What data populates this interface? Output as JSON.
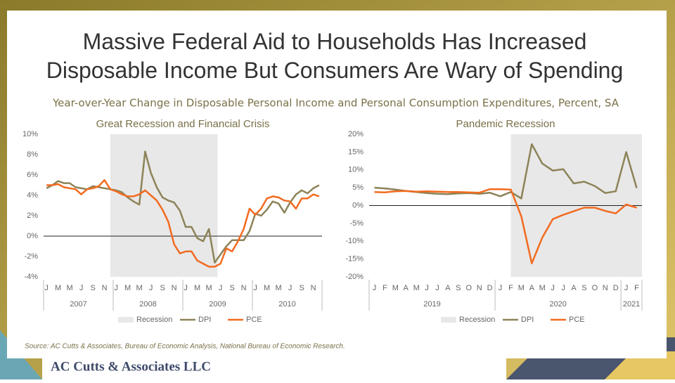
{
  "title": "Massive Federal Aid to Households Has Increased Disposable Income But Consumers Are Wary of Spending",
  "subtitle": "Year-over-Year Change in Disposable Personal Income and Personal Consumption Expenditures, Percent, SA",
  "source": "Source: AC Cutts & Associates, Bureau of Economic Analysis, National Bureau of Economic Research.",
  "logo": "AC Cutts & Associates LLC",
  "chart_data": [
    {
      "type": "line",
      "title": "Great Recession and Financial Crisis",
      "categories": [
        "J",
        null,
        "M",
        null,
        "M",
        null,
        "J",
        null,
        "S",
        null,
        "N",
        null,
        "J",
        null,
        "M",
        null,
        "M",
        null,
        "J",
        null,
        "S",
        null,
        "N",
        null,
        "J",
        null,
        "M",
        null,
        "M",
        null,
        "J",
        null,
        "S",
        null,
        "N",
        null,
        "J",
        null,
        "M",
        null,
        "M",
        null,
        "J",
        null,
        "S",
        null,
        "N",
        null
      ],
      "groups": [
        {
          "label": "2007",
          "size": 12
        },
        {
          "label": "2008",
          "size": 12
        },
        {
          "label": "2009",
          "size": 12
        },
        {
          "label": "2010",
          "size": 12
        }
      ],
      "recession": {
        "name": "Recession",
        "color": "#e8e8e8",
        "span": [
          11,
          29
        ]
      },
      "series": [
        {
          "name": "DPI",
          "color": "#8c8358",
          "values": [
            4.7,
            5.0,
            5.4,
            5.2,
            5.2,
            4.8,
            4.7,
            4.6,
            4.9,
            4.8,
            4.7,
            4.6,
            4.5,
            4.3,
            3.8,
            3.4,
            3.1,
            8.3,
            6.2,
            4.8,
            3.8,
            3.5,
            3.3,
            2.5,
            0.9,
            0.9,
            -0.2,
            -0.5,
            0.7,
            -2.6,
            -1.8,
            -1.0,
            -0.4,
            -0.4,
            -0.4,
            0.5,
            2.2,
            2.0,
            2.6,
            3.4,
            3.2,
            2.3,
            3.3,
            4.1,
            4.5,
            4.2,
            4.7,
            5.0
          ]
        },
        {
          "name": "PCE",
          "color": "#f26b21",
          "values": [
            5.0,
            5.0,
            5.1,
            4.8,
            4.7,
            4.6,
            4.1,
            4.6,
            4.7,
            4.9,
            5.5,
            4.6,
            4.4,
            4.1,
            3.9,
            3.9,
            4.1,
            4.5,
            4.0,
            3.5,
            2.6,
            1.4,
            -0.8,
            -1.7,
            -1.5,
            -1.5,
            -2.4,
            -2.7,
            -3.0,
            -3.0,
            -2.7,
            -1.2,
            -1.5,
            -0.5,
            0.7,
            2.7,
            2.1,
            2.7,
            3.7,
            3.9,
            3.8,
            3.5,
            3.4,
            2.7,
            3.7,
            3.7,
            4.1,
            3.9
          ]
        }
      ],
      "ylim": [
        -4,
        10
      ],
      "yticks": [
        {
          "value": -4,
          "label": "-4%"
        },
        {
          "value": -2,
          "label": "-2%"
        },
        {
          "value": 0,
          "label": "0%"
        },
        {
          "value": 2,
          "label": "2%"
        },
        {
          "value": 4,
          "label": "4%"
        },
        {
          "value": 6,
          "label": "6%"
        },
        {
          "value": 8,
          "label": "8%"
        },
        {
          "value": 10,
          "label": "10%"
        }
      ]
    },
    {
      "type": "line",
      "title": "Pandemic Recession",
      "categories": [
        "J",
        "F",
        "M",
        "A",
        "M",
        "J",
        "J",
        "A",
        "S",
        "O",
        "N",
        "D",
        "J",
        "F",
        "M",
        "A",
        "M",
        "J",
        "J",
        "A",
        "S",
        "O",
        "N",
        "D",
        "J",
        "F"
      ],
      "groups": [
        {
          "label": "2019",
          "size": 12
        },
        {
          "label": "2020",
          "size": 12
        },
        {
          "label": "2021",
          "size": 2
        }
      ],
      "recession": {
        "name": "Recession",
        "color": "#e8e8e8",
        "span": [
          13,
          25
        ]
      },
      "series": [
        {
          "name": "DPI",
          "color": "#8c8358",
          "values": [
            5.0,
            4.8,
            4.5,
            4.1,
            3.8,
            3.5,
            3.3,
            3.2,
            3.4,
            3.5,
            3.3,
            3.6,
            2.6,
            3.8,
            2.0,
            17.2,
            11.8,
            9.8,
            10.2,
            6.2,
            6.7,
            5.5,
            3.5,
            4.0,
            15.0,
            4.9
          ]
        },
        {
          "name": "PCE",
          "color": "#f26b21",
          "values": [
            3.8,
            3.7,
            4.0,
            4.1,
            3.9,
            4.0,
            3.9,
            3.8,
            3.8,
            3.7,
            3.6,
            4.6,
            4.6,
            4.5,
            -3.0,
            -16.2,
            -9.0,
            -3.8,
            -2.6,
            -1.6,
            -0.6,
            -0.6,
            -1.5,
            -2.2,
            0.3,
            -0.6
          ]
        }
      ],
      "ylim": [
        -20,
        20
      ],
      "yticks": [
        {
          "value": -20,
          "label": "-20%"
        },
        {
          "value": -15,
          "label": "-15%"
        },
        {
          "value": -10,
          "label": "-10%"
        },
        {
          "value": -5,
          "label": "-5%"
        },
        {
          "value": 0,
          "label": "0%"
        },
        {
          "value": 5,
          "label": "5%"
        },
        {
          "value": 10,
          "label": "10%"
        },
        {
          "value": 15,
          "label": "15%"
        },
        {
          "value": 20,
          "label": "20%"
        }
      ]
    }
  ]
}
